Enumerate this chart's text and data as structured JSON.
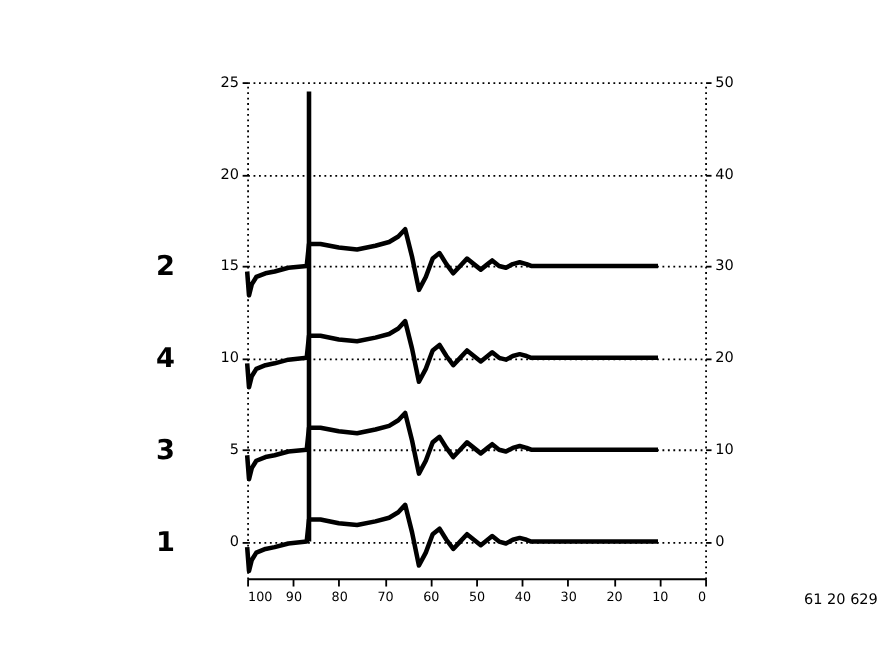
{
  "chart_data": {
    "type": "line",
    "x": [
      100,
      99.6,
      99,
      98,
      96,
      94,
      91,
      87,
      86.5,
      84,
      80,
      76,
      72,
      69,
      67,
      65.5,
      64,
      62.5,
      61,
      59.5,
      58,
      56.5,
      55,
      53.5,
      52,
      50.5,
      49,
      47.5,
      46.5,
      45,
      43.5,
      42,
      40.5,
      39,
      38,
      30,
      20,
      10.3
    ],
    "series": [
      {
        "name": "1",
        "color": "#000000",
        "values": [
          -0.3,
          -1.6,
          -1,
          -0.6,
          -0.4,
          -0.3,
          -0.1,
          0,
          1.2,
          1.2,
          1,
          0.9,
          1.1,
          1.3,
          1.6,
          2,
          0.5,
          -1.3,
          -0.6,
          0.4,
          0.7,
          0.1,
          -0.4,
          0,
          0.4,
          0.1,
          -0.2,
          0.1,
          0.3,
          0,
          -0.1,
          0.1,
          0.2,
          0.1,
          0,
          0,
          0,
          0
        ]
      },
      {
        "name": "3",
        "color": "#000000",
        "values": [
          4.7,
          3.4,
          4,
          4.4,
          4.6,
          4.7,
          4.9,
          5,
          6.2,
          6.2,
          6,
          5.9,
          6.1,
          6.3,
          6.6,
          7,
          5.5,
          3.7,
          4.4,
          5.4,
          5.7,
          5.1,
          4.6,
          5,
          5.4,
          5.1,
          4.8,
          5.1,
          5.3,
          5,
          4.9,
          5.1,
          5.2,
          5.1,
          5,
          5,
          5,
          5
        ]
      },
      {
        "name": "4",
        "color": "#000000",
        "values": [
          9.7,
          8.4,
          9,
          9.4,
          9.6,
          9.7,
          9.9,
          10,
          11.2,
          11.2,
          11,
          10.9,
          11.1,
          11.3,
          11.6,
          12,
          10.5,
          8.7,
          9.4,
          10.4,
          10.7,
          10.1,
          9.6,
          10,
          10.4,
          10.1,
          9.8,
          10.1,
          10.3,
          10,
          9.9,
          10.1,
          10.2,
          10.1,
          10,
          10,
          10,
          10
        ]
      },
      {
        "name": "2",
        "color": "#000000",
        "values": [
          14.7,
          13.4,
          14,
          14.4,
          14.6,
          14.7,
          14.9,
          15,
          16.2,
          16.2,
          16,
          15.9,
          16.1,
          16.3,
          16.6,
          17,
          15.5,
          13.7,
          14.4,
          15.4,
          15.7,
          15.1,
          14.6,
          15,
          15.4,
          15.1,
          14.8,
          15.1,
          15.3,
          15,
          14.9,
          15.1,
          15.2,
          15.1,
          15,
          15,
          15,
          15
        ]
      },
      {
        "type": "line",
        "color": "#000000",
        "x": [
          86.5,
          86.5
        ],
        "values": [
          0,
          24.5
        ]
      }
    ],
    "xlim": [
      100,
      0
    ],
    "xticks": [
      100,
      90,
      80,
      70,
      60,
      50,
      40,
      30,
      20,
      10,
      0
    ],
    "ylim": [
      -2,
      25
    ],
    "yticks": [
      0,
      5,
      10,
      15,
      20,
      25
    ],
    "y2lim": [
      -4,
      50
    ],
    "y2ticks": [
      0,
      10,
      20,
      30,
      40,
      50
    ],
    "grid": "y",
    "line_style": "solid",
    "marker": "none",
    "annotations": [
      "61 20 629"
    ]
  }
}
